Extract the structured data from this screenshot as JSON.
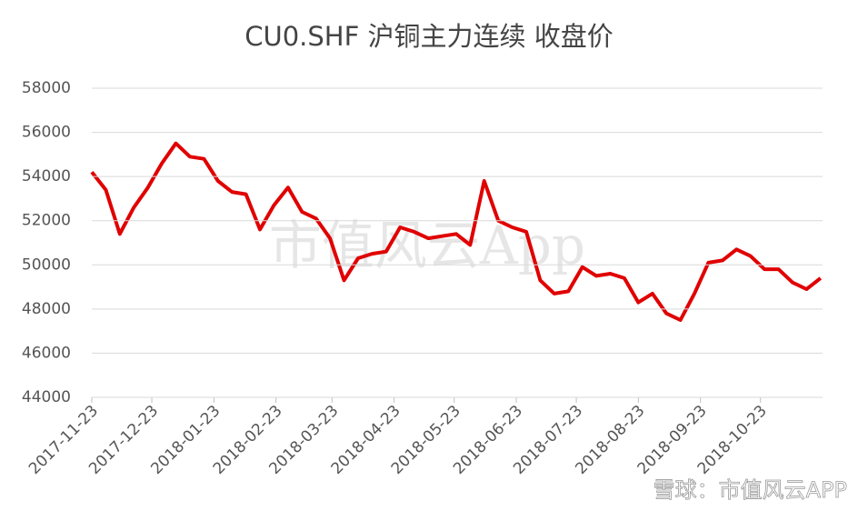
{
  "chart_data": {
    "type": "line",
    "title": "CU0.SHF 沪铜主力连续 收盘价",
    "watermarks": [
      "市值风云App",
      "雪球：市值风云APP"
    ],
    "x": [
      "2017-11-23",
      "2017-11-30",
      "2017-12-07",
      "2017-12-14",
      "2017-12-21",
      "2017-12-28",
      "2018-01-04",
      "2018-01-11",
      "2018-01-18",
      "2018-01-25",
      "2018-02-01",
      "2018-02-08",
      "2018-02-15",
      "2018-02-22",
      "2018-03-01",
      "2018-03-08",
      "2018-03-15",
      "2018-03-22",
      "2018-03-29",
      "2018-04-05",
      "2018-04-12",
      "2018-04-19",
      "2018-04-26",
      "2018-05-03",
      "2018-05-10",
      "2018-05-17",
      "2018-05-24",
      "2018-05-31",
      "2018-06-07",
      "2018-06-14",
      "2018-06-21",
      "2018-06-28",
      "2018-07-05",
      "2018-07-12",
      "2018-07-19",
      "2018-07-26",
      "2018-08-02",
      "2018-08-09",
      "2018-08-16",
      "2018-08-23",
      "2018-08-30",
      "2018-09-06",
      "2018-09-13",
      "2018-09-20",
      "2018-09-27",
      "2018-10-04",
      "2018-10-11",
      "2018-10-18",
      "2018-10-25",
      "2018-11-01",
      "2018-11-08",
      "2018-11-15",
      "2018-11-22"
    ],
    "series": [
      {
        "name": "收盘价",
        "color": "#e00000",
        "values": [
          54200,
          53400,
          51400,
          52600,
          53500,
          54600,
          55500,
          54900,
          54800,
          53800,
          53300,
          53200,
          51600,
          52700,
          53500,
          52400,
          52100,
          51200,
          49300,
          50300,
          50500,
          50600,
          51700,
          51500,
          51200,
          51300,
          51400,
          50900,
          53800,
          52000,
          51700,
          51500,
          49300,
          48700,
          48800,
          49900,
          49500,
          49600,
          49400,
          48300,
          48700,
          47800,
          47500,
          48700,
          50100,
          50200,
          50700,
          50400,
          49800,
          49800,
          49200,
          48900,
          49400
        ]
      }
    ],
    "xlim": [
      "2017-11-23",
      "2018-11-23"
    ],
    "xticks": [
      "2017-11-23",
      "2017-12-23",
      "2018-01-23",
      "2018-02-23",
      "2018-03-23",
      "2018-04-23",
      "2018-05-23",
      "2018-06-23",
      "2018-07-23",
      "2018-08-23",
      "2018-09-23",
      "2018-10-23"
    ],
    "ylim": [
      44000,
      58000
    ],
    "yticks": [
      44000,
      46000,
      48000,
      50000,
      52000,
      54000,
      56000,
      58000
    ],
    "grid": true
  }
}
